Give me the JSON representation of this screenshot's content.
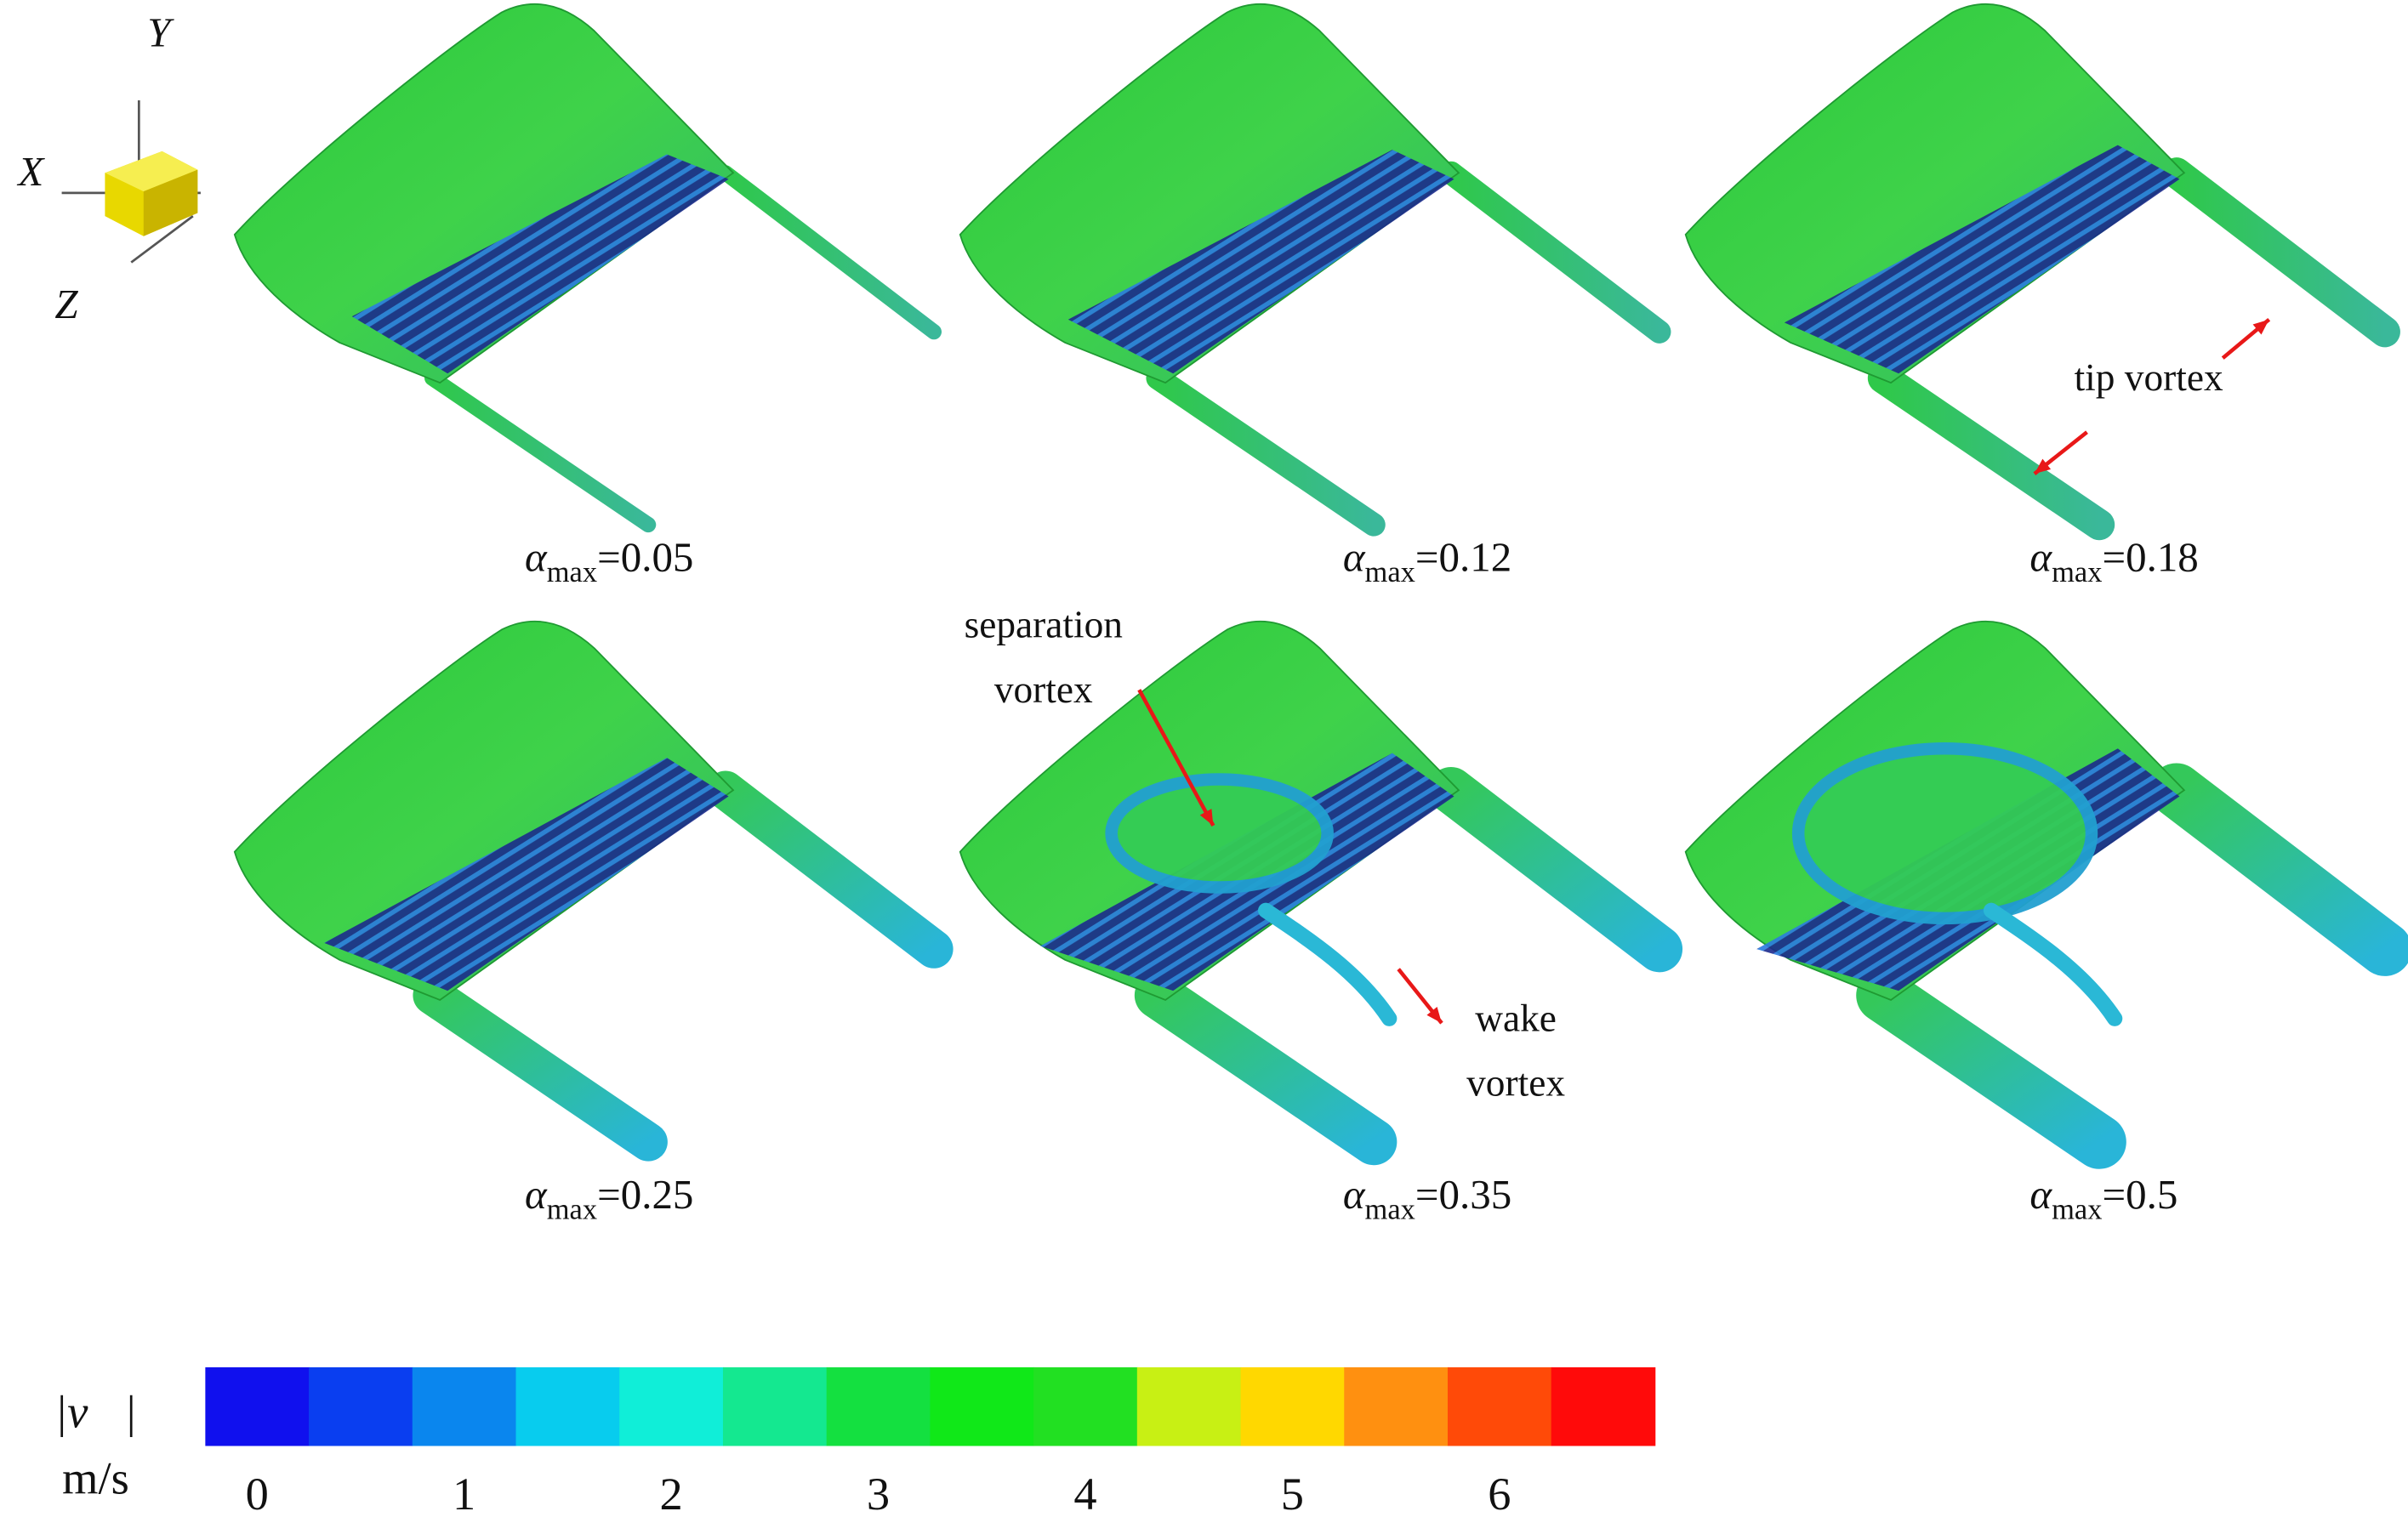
{
  "axes_triad": {
    "x": "X",
    "y": "Y",
    "z": "Z"
  },
  "panels": [
    {
      "symbol": "α",
      "subscript": "max",
      "value": "=0.05"
    },
    {
      "symbol": "α",
      "subscript": "max",
      "value": "=0.12"
    },
    {
      "symbol": "α",
      "subscript": "max",
      "value": "=0.18"
    },
    {
      "symbol": "α",
      "subscript": "max",
      "value": "=0.25"
    },
    {
      "symbol": "α",
      "subscript": "max",
      "value": "=0.35"
    },
    {
      "symbol": "α",
      "subscript": "max",
      "value": "=0.5"
    }
  ],
  "annotations": [
    {
      "lines": [
        "tip vortex"
      ]
    },
    {
      "lines": [
        "separation",
        "vortex"
      ]
    },
    {
      "lines": [
        "wake",
        "vortex"
      ]
    }
  ],
  "colorbar": {
    "title": "|v⃗|",
    "unit": "m/s",
    "range": [
      -0.25,
      6.75
    ],
    "colors": [
      "#1010ee",
      "#0a3ef0",
      "#0a86ee",
      "#08ccee",
      "#10eed8",
      "#14e890",
      "#14e040",
      "#10e818",
      "#22e022",
      "#c8f014",
      "#ffd800",
      "#ff9010",
      "#ff4a08",
      "#ff0a0a"
    ],
    "ticks": [
      0,
      1,
      2,
      3,
      4,
      5,
      6
    ]
  }
}
